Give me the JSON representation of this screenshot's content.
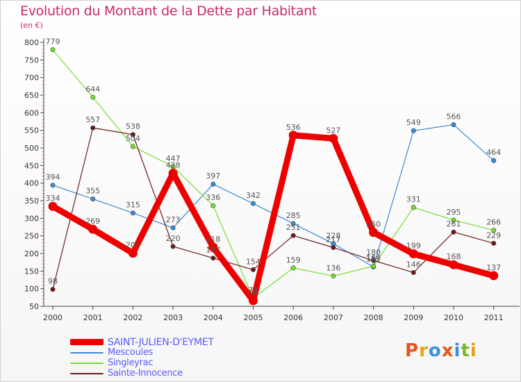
{
  "title": "Evolution du Montant de la Dette par Habitant",
  "unit_label": "(en €)",
  "logo": {
    "text": "Proxiti",
    "colors": [
      "#e8541a",
      "#e8a11a",
      "#3d8fd9",
      "#e8541a",
      "#3d8fd9",
      "#7ab82e",
      "#e8a11a"
    ]
  },
  "chart_data": {
    "type": "line",
    "title": "Evolution du Montant de la Dette par Habitant",
    "ylabel": "(en €)",
    "xlabel": "",
    "x": [
      "2000",
      "2001",
      "2002",
      "2003",
      "2004",
      "2005",
      "2006",
      "2007",
      "2008",
      "2009",
      "2010",
      "2011"
    ],
    "yticks": [
      50,
      100,
      150,
      200,
      250,
      300,
      350,
      400,
      450,
      500,
      550,
      600,
      650,
      700,
      750,
      800
    ],
    "ylim": [
      50,
      800
    ],
    "grid": false,
    "legend_placement": "bottom-left",
    "series": [
      {
        "name": "SAINT-JULIEN-D'EYMET",
        "color": "#ee0000",
        "emphasis": true,
        "values": [
          334,
          269,
          201,
          428,
          218,
          66,
          536,
          527,
          260,
          199,
          168,
          137
        ],
        "labels": [
          "334",
          "269",
          "201",
          "428",
          "218",
          "66",
          "536",
          "527",
          "260",
          "199",
          "168",
          "137"
        ]
      },
      {
        "name": "Mescoules",
        "color": "#3a8ad6",
        "values": [
          394,
          355,
          315,
          273,
          397,
          342,
          285,
          228,
          162,
          549,
          566,
          464
        ],
        "labels": [
          "394",
          "355",
          "315",
          "273",
          "397",
          "342",
          "285",
          "228",
          "162",
          "549",
          "566",
          "464"
        ]
      },
      {
        "name": "Singleyrac",
        "color": "#77dd33",
        "values": [
          779,
          644,
          504,
          447,
          336,
          73,
          159,
          136,
          164,
          331,
          295,
          266
        ],
        "labels": [
          "779",
          "644",
          "504",
          "447",
          "336",
          "73",
          "159",
          "136",
          "164",
          "331",
          "295",
          "266"
        ]
      },
      {
        "name": "Sainte-Innocence",
        "color": "#6b1a1a",
        "values": [
          98,
          557,
          538,
          220,
          187,
          154,
          251,
          217,
          180,
          146,
          261,
          229
        ],
        "labels": [
          "98",
          "557",
          "538",
          "220",
          "187",
          "154",
          "251",
          "217",
          "180",
          "146",
          "261",
          "229"
        ]
      }
    ]
  }
}
